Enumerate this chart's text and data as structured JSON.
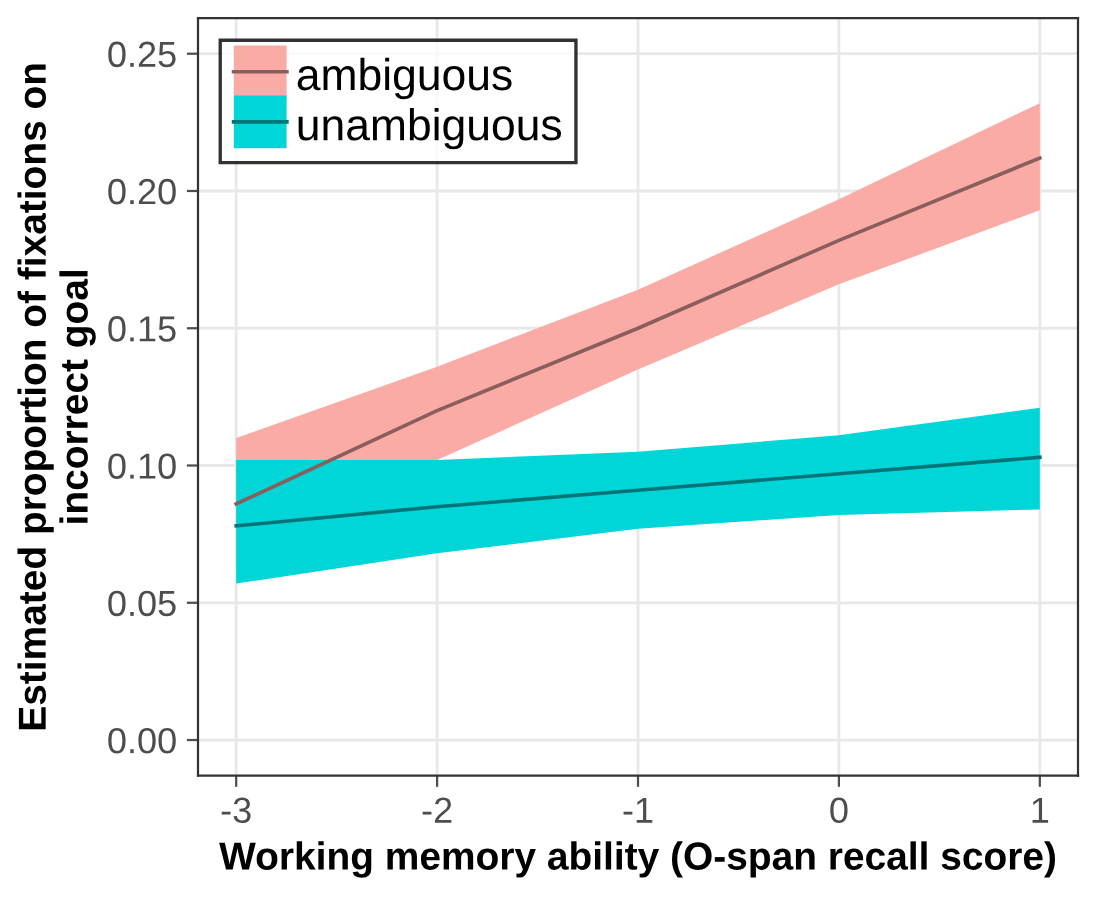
{
  "chart_data": {
    "type": "line",
    "xlabel": "Working memory ability (O-span recall score)",
    "ylabel": "Estimated proportion of fixations on\nincorrect goal",
    "x": [
      -3,
      -2,
      -1,
      0,
      1
    ],
    "series": [
      {
        "name": "ambiguous",
        "color": "#8a5e5b",
        "values": [
          0.086,
          0.12,
          0.15,
          0.182,
          0.212
        ],
        "lower": [
          0.063,
          0.102,
          0.135,
          0.166,
          0.193
        ],
        "upper": [
          0.11,
          0.136,
          0.164,
          0.197,
          0.232
        ]
      },
      {
        "name": "unambiguous",
        "color": "#007577",
        "values": [
          0.078,
          0.085,
          0.091,
          0.097,
          0.103
        ],
        "lower": [
          0.057,
          0.068,
          0.077,
          0.082,
          0.084
        ],
        "upper": [
          0.102,
          0.102,
          0.105,
          0.111,
          0.121
        ]
      }
    ],
    "xlim": [
      -3.19,
      1.19
    ],
    "ylim": [
      -0.013,
      0.263
    ],
    "xticks": [
      -3,
      -2,
      -1,
      0,
      1
    ],
    "yticks": [
      {
        "value": 0,
        "label": "0.00"
      },
      {
        "value": 0.05,
        "label": "0.05"
      },
      {
        "value": 0.1,
        "label": "0.10"
      },
      {
        "value": 0.15,
        "label": "0.15"
      },
      {
        "value": 0.2,
        "label": "0.20"
      },
      {
        "value": 0.25,
        "label": "0.25"
      }
    ],
    "grid": true,
    "legend": "top left",
    "marker": "none",
    "line_style": "solid"
  }
}
